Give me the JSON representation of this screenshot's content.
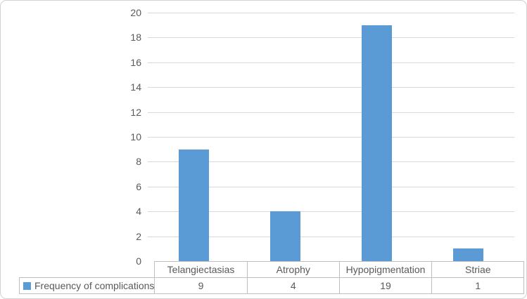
{
  "chart_data": {
    "type": "bar",
    "title": "",
    "xlabel": "",
    "ylabel": "",
    "categories": [
      "Telangiectasias",
      "Atrophy",
      "Hypopigmentation",
      "Striae"
    ],
    "series": [
      {
        "name": "Frequency of complications",
        "values": [
          9,
          4,
          19,
          1
        ]
      }
    ],
    "ylim": [
      0,
      20
    ],
    "ytick_step": 2,
    "ytick_labels": [
      "0",
      "2",
      "4",
      "6",
      "8",
      "10",
      "12",
      "14",
      "16",
      "18",
      "20"
    ],
    "grid": true,
    "legend_position": "bottom-data-table",
    "data_table_shown": true,
    "colors": {
      "bar": "#5b9bd5",
      "gridline": "#d9d9d9",
      "axis_text": "#595959",
      "table_border": "#bfbfbf",
      "frame_border": "#d2d2d2",
      "background": "#ffffff"
    }
  }
}
